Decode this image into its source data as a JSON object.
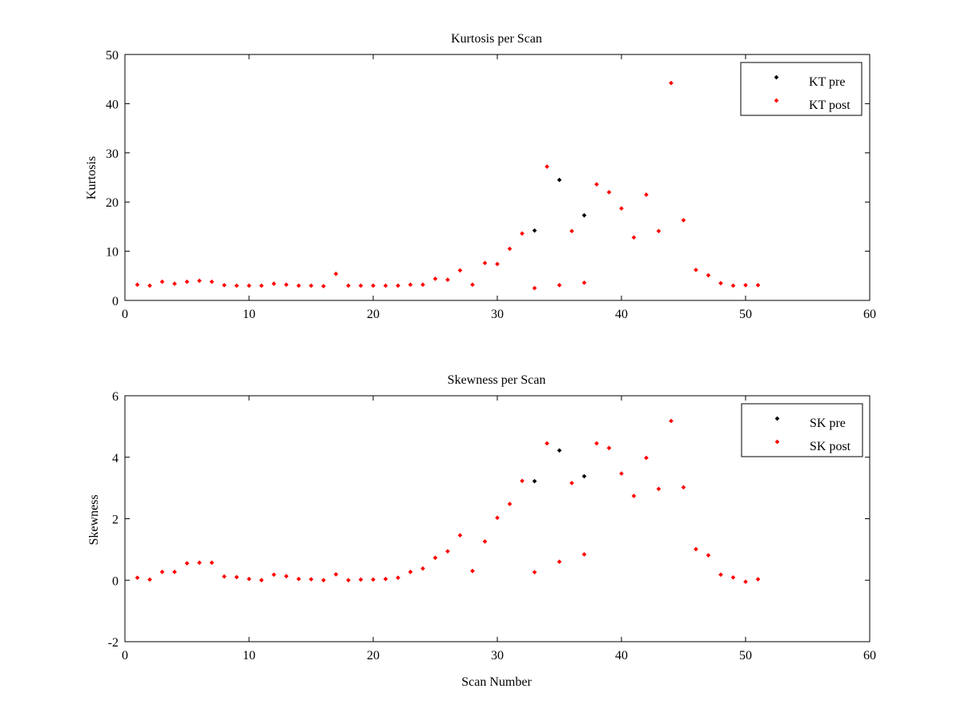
{
  "colors": {
    "pre": "#000000",
    "post": "#ff0000",
    "axes": "#000000",
    "background": "#ffffff"
  },
  "chart_data": [
    {
      "type": "scatter",
      "title": "Kurtosis per Scan",
      "xlabel": "",
      "ylabel": "Kurtosis",
      "xlim": [
        0,
        60
      ],
      "ylim": [
        0,
        50
      ],
      "xticks": [
        0,
        10,
        20,
        30,
        40,
        50,
        60
      ],
      "yticks": [
        0,
        10,
        20,
        30,
        40,
        50
      ],
      "grid": false,
      "legend_position": "top-right",
      "series": [
        {
          "name": "KT pre",
          "color": "#000000",
          "marker": "dot",
          "points": [
            [
              33,
              14.2
            ],
            [
              35,
              24.5
            ],
            [
              37,
              17.3
            ]
          ]
        },
        {
          "name": "KT post",
          "color": "#ff0000",
          "marker": "dot",
          "points": [
            [
              1,
              3.2
            ],
            [
              2,
              3.0
            ],
            [
              3,
              3.8
            ],
            [
              4,
              3.4
            ],
            [
              5,
              3.8
            ],
            [
              6,
              4.0
            ],
            [
              7,
              3.8
            ],
            [
              8,
              3.1
            ],
            [
              9,
              3.0
            ],
            [
              10,
              3.0
            ],
            [
              11,
              3.0
            ],
            [
              12,
              3.4
            ],
            [
              13,
              3.2
            ],
            [
              14,
              3.0
            ],
            [
              15,
              3.0
            ],
            [
              16,
              2.9
            ],
            [
              17,
              5.4
            ],
            [
              18,
              3.0
            ],
            [
              19,
              3.0
            ],
            [
              20,
              3.0
            ],
            [
              21,
              3.0
            ],
            [
              22,
              3.0
            ],
            [
              23,
              3.2
            ],
            [
              24,
              3.2
            ],
            [
              25,
              4.4
            ],
            [
              26,
              4.2
            ],
            [
              27,
              6.1
            ],
            [
              28,
              3.2
            ],
            [
              29,
              7.6
            ],
            [
              30,
              7.4
            ],
            [
              31,
              10.5
            ],
            [
              32,
              13.6
            ],
            [
              33,
              2.5
            ],
            [
              34,
              27.2
            ],
            [
              35,
              3.1
            ],
            [
              36,
              14.1
            ],
            [
              37,
              3.6
            ],
            [
              38,
              23.6
            ],
            [
              39,
              22.0
            ],
            [
              40,
              18.7
            ],
            [
              41,
              12.8
            ],
            [
              42,
              21.5
            ],
            [
              43,
              14.1
            ],
            [
              44,
              44.2
            ],
            [
              45,
              16.3
            ],
            [
              46,
              6.2
            ],
            [
              47,
              5.1
            ],
            [
              48,
              3.5
            ],
            [
              49,
              3.0
            ],
            [
              50,
              3.1
            ],
            [
              51,
              3.1
            ]
          ]
        }
      ]
    },
    {
      "type": "scatter",
      "title": "Skewness per Scan",
      "xlabel": "Scan Number",
      "ylabel": "Skewness",
      "xlim": [
        0,
        60
      ],
      "ylim": [
        -2,
        6
      ],
      "xticks": [
        0,
        10,
        20,
        30,
        40,
        50,
        60
      ],
      "yticks": [
        -2,
        0,
        2,
        4,
        6
      ],
      "grid": false,
      "legend_position": "top-right",
      "series": [
        {
          "name": "SK pre",
          "color": "#000000",
          "marker": "dot",
          "points": [
            [
              33,
              3.22
            ],
            [
              35,
              4.22
            ],
            [
              37,
              3.38
            ]
          ]
        },
        {
          "name": "SK post",
          "color": "#ff0000",
          "marker": "dot",
          "points": [
            [
              1,
              0.08
            ],
            [
              2,
              0.02
            ],
            [
              3,
              0.27
            ],
            [
              4,
              0.27
            ],
            [
              5,
              0.55
            ],
            [
              6,
              0.57
            ],
            [
              7,
              0.57
            ],
            [
              8,
              0.12
            ],
            [
              9,
              0.1
            ],
            [
              10,
              0.04
            ],
            [
              11,
              0.0
            ],
            [
              12,
              0.18
            ],
            [
              13,
              0.13
            ],
            [
              14,
              0.04
            ],
            [
              15,
              0.03
            ],
            [
              16,
              0.0
            ],
            [
              17,
              0.19
            ],
            [
              18,
              0.0
            ],
            [
              19,
              0.02
            ],
            [
              20,
              0.02
            ],
            [
              21,
              0.04
            ],
            [
              22,
              0.08
            ],
            [
              23,
              0.27
            ],
            [
              24,
              0.38
            ],
            [
              25,
              0.73
            ],
            [
              26,
              0.94
            ],
            [
              27,
              1.46
            ],
            [
              28,
              0.3
            ],
            [
              29,
              1.26
            ],
            [
              30,
              2.03
            ],
            [
              31,
              2.48
            ],
            [
              32,
              3.23
            ],
            [
              33,
              0.26
            ],
            [
              34,
              4.45
            ],
            [
              35,
              0.6
            ],
            [
              36,
              3.16
            ],
            [
              37,
              0.84
            ],
            [
              38,
              4.45
            ],
            [
              39,
              4.3
            ],
            [
              40,
              3.47
            ],
            [
              41,
              2.74
            ],
            [
              42,
              3.98
            ],
            [
              43,
              2.97
            ],
            [
              44,
              5.18
            ],
            [
              45,
              3.02
            ],
            [
              46,
              1.01
            ],
            [
              47,
              0.81
            ],
            [
              48,
              0.18
            ],
            [
              49,
              0.09
            ],
            [
              50,
              -0.05
            ],
            [
              51,
              0.03
            ]
          ]
        }
      ]
    }
  ]
}
